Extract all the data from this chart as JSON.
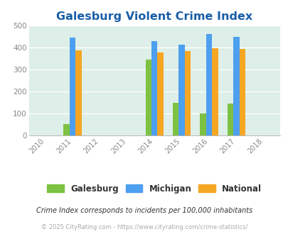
{
  "title": "Galesburg Violent Crime Index",
  "years": [
    2010,
    2011,
    2012,
    2013,
    2014,
    2015,
    2016,
    2017,
    2018
  ],
  "bar_years": [
    2011,
    2014,
    2015,
    2016,
    2017
  ],
  "galesburg": [
    52,
    345,
    150,
    100,
    147
  ],
  "michigan": [
    445,
    430,
    415,
    462,
    450
  ],
  "national": [
    388,
    378,
    384,
    397,
    394
  ],
  "galesburg_color": "#7dc242",
  "michigan_color": "#4d9fef",
  "national_color": "#f5a623",
  "bg_color": "#deeee8",
  "ylim": [
    0,
    500
  ],
  "yticks": [
    0,
    100,
    200,
    300,
    400,
    500
  ],
  "title_color": "#1a5ea8",
  "legend_labels": [
    "Galesburg",
    "Michigan",
    "National"
  ],
  "footnote1": "Crime Index corresponds to incidents per 100,000 inhabitants",
  "footnote2": "© 2025 CityRating.com - https://www.cityrating.com/crime-statistics/",
  "bar_width": 0.22,
  "xlim": [
    2009.4,
    2018.6
  ]
}
